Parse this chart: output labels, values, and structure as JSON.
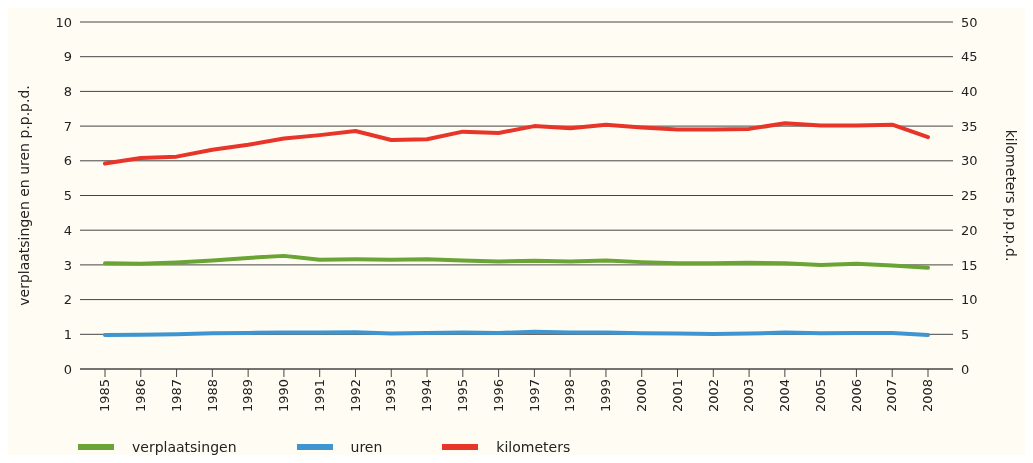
{
  "chart_data": {
    "type": "line",
    "ylabel": "verplaatsingen en uren p.p.p.d.",
    "y2label": "kilometers p.p.p.d.",
    "categories": [
      "1985",
      "1986",
      "1987",
      "1988",
      "1989",
      "1990",
      "1991",
      "1992",
      "1993",
      "1994",
      "1995",
      "1996",
      "1997",
      "1998",
      "1999",
      "2000",
      "2001",
      "2002",
      "2003",
      "2004",
      "2005",
      "2006",
      "2007",
      "2008"
    ],
    "series": [
      {
        "name": "verplaatsingen",
        "color": "#6aa434",
        "values": [
          3.05,
          3.03,
          3.07,
          3.13,
          3.2,
          3.26,
          3.15,
          3.16,
          3.15,
          3.16,
          3.13,
          3.1,
          3.12,
          3.1,
          3.13,
          3.08,
          3.05,
          3.05,
          3.06,
          3.05,
          3.0,
          3.03,
          2.98,
          2.92
        ]
      },
      {
        "name": "uren",
        "color": "#3e95cf",
        "values": [
          0.98,
          0.99,
          1.0,
          1.03,
          1.04,
          1.05,
          1.05,
          1.06,
          1.02,
          1.04,
          1.05,
          1.04,
          1.07,
          1.05,
          1.05,
          1.03,
          1.02,
          1.01,
          1.02,
          1.05,
          1.03,
          1.04,
          1.04,
          0.98
        ]
      },
      {
        "name": "kilometers",
        "color": "#e8352a",
        "axis": "y2",
        "values": [
          29.6,
          30.4,
          30.6,
          31.6,
          32.3,
          33.2,
          33.7,
          34.3,
          33.0,
          33.1,
          34.2,
          34.0,
          35.0,
          34.7,
          35.2,
          34.8,
          34.5,
          34.5,
          34.6,
          35.4,
          35.1,
          35.1,
          35.2,
          33.4
        ]
      }
    ],
    "ylim": [
      0,
      10
    ],
    "yticks": [
      0,
      1,
      2,
      3,
      4,
      5,
      6,
      7,
      8,
      9,
      10
    ],
    "y2lim": [
      0,
      50
    ],
    "y2ticks": [
      0,
      5,
      10,
      15,
      20,
      25,
      30,
      35,
      40,
      45,
      50
    ],
    "grid": "y",
    "legend": "bottom left",
    "marker": "none",
    "line_style": "solid"
  }
}
